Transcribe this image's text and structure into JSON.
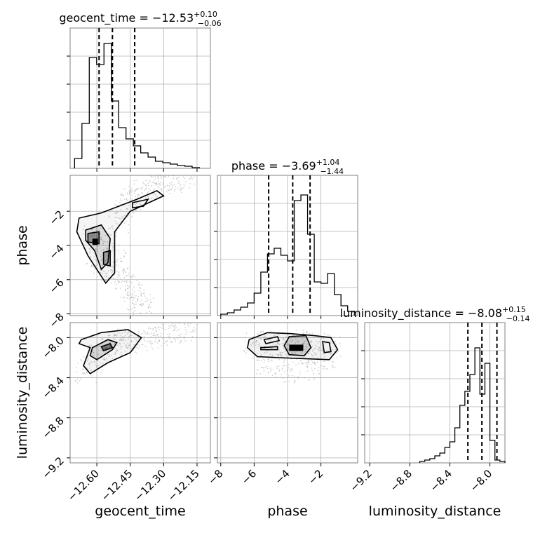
{
  "chart_data": [
    {
      "type": "histogram",
      "panel": "geocent_time",
      "title": {
        "prefix": "geocent_time = −12.53",
        "plus": "+0.10",
        "minus": "−0.06"
      },
      "xlim": [
        -12.72,
        -12.09
      ],
      "ylim": [
        0,
        1.0
      ],
      "y_ticks": [
        0.2,
        0.4,
        0.6,
        0.8
      ],
      "quantiles": [
        -12.59,
        -12.53,
        -12.43
      ],
      "bin_edges": [
        -12.7,
        -12.667,
        -12.634,
        -12.601,
        -12.568,
        -12.535,
        -12.502,
        -12.469,
        -12.436,
        -12.403,
        -12.37,
        -12.337,
        -12.304,
        -12.271,
        -12.238,
        -12.205,
        -12.172,
        -12.139
      ],
      "counts": [
        0.07,
        0.32,
        0.79,
        0.74,
        0.89,
        0.48,
        0.29,
        0.21,
        0.16,
        0.11,
        0.08,
        0.05,
        0.04,
        0.03,
        0.02,
        0.015,
        0.005
      ]
    },
    {
      "type": "histogram",
      "panel": "phase",
      "title": {
        "prefix": "phase = −3.69",
        "plus": "+1.04",
        "minus": "−1.44"
      },
      "xlim": [
        -8.2,
        0.2
      ],
      "ylim": [
        0,
        1.0
      ],
      "y_ticks": [
        0.2,
        0.4,
        0.6,
        0.8
      ],
      "quantiles": [
        -5.13,
        -3.69,
        -2.65
      ],
      "bin_edges": [
        -8.0,
        -7.6,
        -7.2,
        -6.8,
        -6.4,
        -6.0,
        -5.6,
        -5.2,
        -4.8,
        -4.4,
        -4.0,
        -3.6,
        -3.2,
        -2.8,
        -2.4,
        -2.0,
        -1.6,
        -1.2,
        -0.8,
        -0.4,
        0.0
      ],
      "counts": [
        0.01,
        0.02,
        0.04,
        0.06,
        0.09,
        0.16,
        0.31,
        0.44,
        0.48,
        0.43,
        0.39,
        0.82,
        0.86,
        0.58,
        0.24,
        0.23,
        0.3,
        0.15,
        0.07,
        0.03
      ]
    },
    {
      "type": "histogram",
      "panel": "luminosity_distance",
      "title": {
        "prefix": "luminosity_distance = −8.08",
        "plus": "+0.15",
        "minus": "−0.14"
      },
      "xlim": [
        -9.25,
        -7.85
      ],
      "ylim": [
        0,
        1.0
      ],
      "y_ticks": [
        0.2,
        0.4,
        0.6,
        0.8
      ],
      "quantiles": [
        -8.22,
        -8.08,
        -7.93
      ],
      "bin_edges": [
        -8.7,
        -8.65,
        -8.6,
        -8.55,
        -8.5,
        -8.45,
        -8.4,
        -8.35,
        -8.3,
        -8.25,
        -8.2,
        -8.15,
        -8.1,
        -8.05,
        -8.0,
        -7.95,
        -7.9,
        -7.85
      ],
      "counts": [
        0.01,
        0.02,
        0.03,
        0.05,
        0.07,
        0.11,
        0.15,
        0.25,
        0.41,
        0.51,
        0.63,
        0.82,
        0.49,
        0.71,
        0.16,
        0.02,
        0.01
      ]
    },
    {
      "type": "scatter_density",
      "panel": "phase_vs_geocent_time",
      "xlim": [
        -12.72,
        -12.09
      ],
      "ylim": [
        -8.1,
        0.1
      ],
      "x": [
        -12.62,
        -12.59,
        -12.55,
        -12.52,
        -12.5,
        -12.47,
        -12.44,
        -12.41,
        -12.38,
        -12.35,
        -12.31,
        -12.27,
        -12.24,
        -12.21,
        -12.6,
        -12.57,
        -12.53,
        -12.51,
        -12.48,
        -12.46,
        -12.43,
        -12.41,
        -12.39
      ],
      "y": [
        -3.4,
        -3.6,
        -3.9,
        -4.4,
        -2.7,
        -1.8,
        -1.3,
        -1.0,
        -0.8,
        -0.6,
        -0.4,
        -0.3,
        -0.2,
        -0.1,
        -4.6,
        -5.1,
        -5.5,
        -5.8,
        -6.1,
        -6.5,
        -6.9,
        -7.3,
        -7.7
      ]
    },
    {
      "type": "scatter_density",
      "panel": "luminosity_distance_vs_geocent_time",
      "xlim": [
        -12.72,
        -12.09
      ],
      "ylim": [
        -9.25,
        -7.85
      ],
      "x": [
        -12.65,
        -12.62,
        -12.59,
        -12.56,
        -12.53,
        -12.5,
        -12.47,
        -12.44,
        -12.4,
        -12.36,
        -12.32,
        -12.28,
        -12.24,
        -12.2
      ],
      "y": [
        -8.35,
        -8.25,
        -8.18,
        -8.12,
        -8.08,
        -8.05,
        -8.02,
        -8.03,
        -8.05,
        -8.0,
        -7.98,
        -7.96,
        -7.95,
        -7.94
      ]
    },
    {
      "type": "scatter_density",
      "panel": "luminosity_distance_vs_phase",
      "xlim": [
        -8.2,
        0.2
      ],
      "ylim": [
        -9.25,
        -7.85
      ],
      "x": [
        -6.0,
        -5.5,
        -5.0,
        -4.5,
        -4.0,
        -3.5,
        -3.0,
        -2.5,
        -2.0,
        -1.5,
        -5.2,
        -4.6,
        -3.8,
        -3.2,
        -2.4,
        -1.8
      ],
      "y": [
        -8.05,
        -8.1,
        -8.04,
        -8.08,
        -8.12,
        -8.07,
        -8.03,
        -8.09,
        -8.06,
        -8.1,
        -8.3,
        -8.28,
        -8.35,
        -8.25,
        -8.32,
        -8.22
      ]
    }
  ],
  "axes": {
    "geocent_time": {
      "label": "geocent_time",
      "ticks": [
        -12.6,
        -12.45,
        -12.3,
        -12.15
      ],
      "tick_labels": [
        "−12.60",
        "−12.45",
        "−12.30",
        "−12.15"
      ]
    },
    "phase": {
      "label": "phase",
      "ticks": [
        -8,
        -6,
        -4,
        -2
      ],
      "tick_labels": [
        "−8",
        "−6",
        "−4",
        "−2"
      ]
    },
    "luminosity_distance": {
      "label": "luminosity_distance",
      "ticks": [
        -9.2,
        -8.8,
        -8.4,
        -8.0
      ],
      "tick_labels": [
        "−9.2",
        "−8.8",
        "−8.4",
        "−8.0"
      ]
    }
  },
  "colors": {
    "line": "#000000",
    "grid": "#b0b0b0",
    "points": "#7f7f7f"
  }
}
